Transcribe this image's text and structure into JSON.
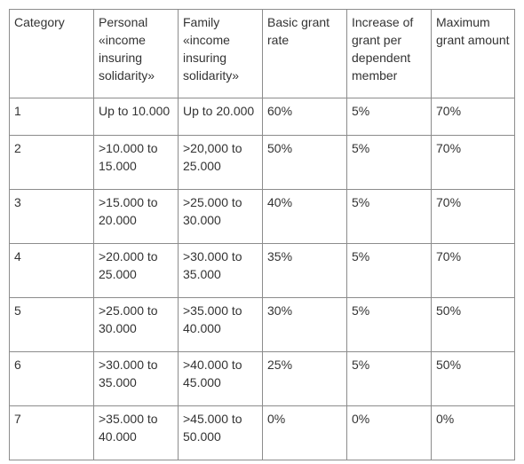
{
  "table": {
    "headers": [
      "Category",
      "Personal «income insuring solidarity»",
      "Family «income insuring solidarity»",
      "Basic grant rate",
      "Increase of grant per dependent member",
      "Maximum grant amount"
    ],
    "rows": [
      [
        "1",
        "Up to 10.000",
        "Up to 20.000",
        "60%",
        "5%",
        "70%"
      ],
      [
        "2",
        ">10.000 to 15.000",
        ">20,000 to 25.000",
        "50%",
        "5%",
        "70%"
      ],
      [
        "3",
        ">15.000 to 20.000",
        ">25.000 to 30.000",
        "40%",
        "5%",
        "70%"
      ],
      [
        "4",
        ">20.000 to 25.000",
        ">30.000 to 35.000",
        "35%",
        "5%",
        "70%"
      ],
      [
        "5",
        ">25.000 to 30.000",
        ">35.000 to 40.000",
        "30%",
        "5%",
        "50%"
      ],
      [
        "6",
        ">30.000 to 35.000",
        ">40.000 to 45.000",
        "25%",
        "5%",
        "50%"
      ],
      [
        "7",
        ">35.000 to 40.000",
        ">45.000 to 50.000",
        "0%",
        "0%",
        "0%"
      ]
    ]
  }
}
